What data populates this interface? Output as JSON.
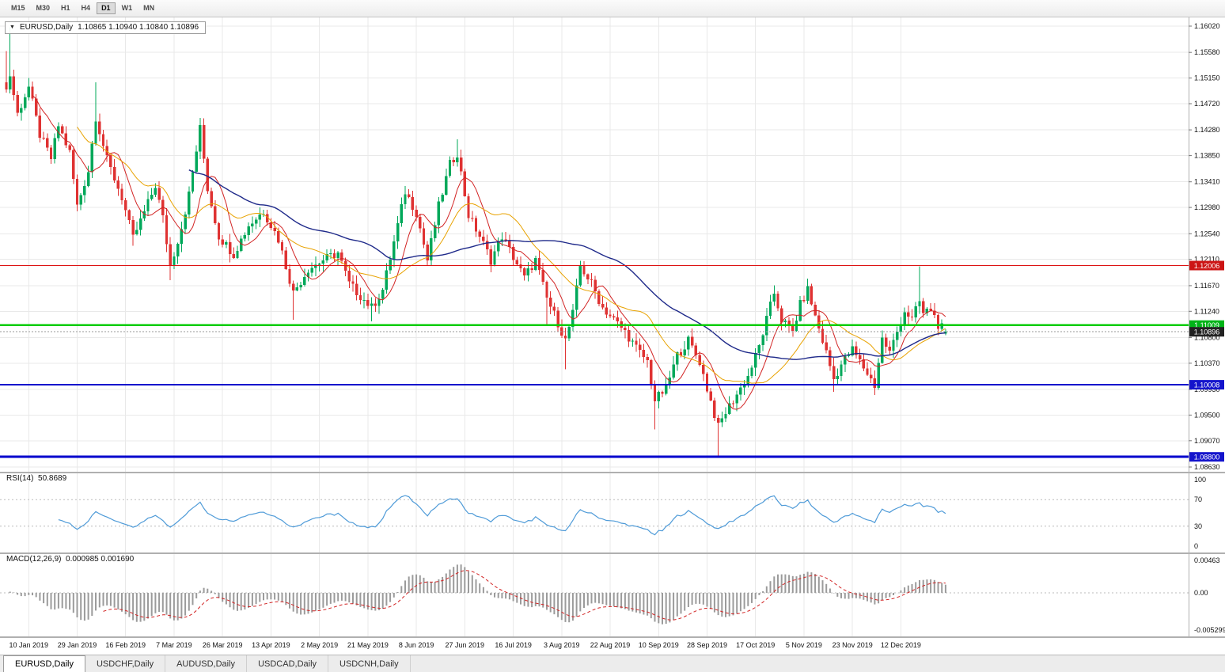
{
  "toolbar": {
    "timeframes": [
      "M15",
      "M30",
      "H1",
      "H4",
      "D1",
      "W1",
      "MN"
    ],
    "active": "D1"
  },
  "chart": {
    "symbol": "EURUSD,Daily",
    "ohlc_text": "1.10865 1.10940 1.10840 1.10896"
  },
  "overlays": {
    "rsi_label": "RSI(14)",
    "rsi_value": "50.8689",
    "macd_label": "MACD(12,26,9)",
    "macd_values": "0.000985 0.001690"
  },
  "price_axis": {
    "labels": [
      "1.16020",
      "1.15580",
      "1.15150",
      "1.14720",
      "1.14280",
      "1.13850",
      "1.13410",
      "1.12980",
      "1.12540",
      "1.12110",
      "1.11670",
      "1.11240",
      "1.10800",
      "1.10370",
      "1.09930",
      "1.09500",
      "1.09070",
      "1.08630"
    ]
  },
  "badges": [
    {
      "text": "1.12006",
      "price": 1.12006,
      "color": "#cc1414"
    },
    {
      "text": "1.11009",
      "price": 1.11009,
      "color": "#00b418"
    },
    {
      "text": "1.10896",
      "price": 1.10896,
      "color": "#222222"
    },
    {
      "text": "1.10008",
      "price": 1.10008,
      "color": "#1414cc"
    },
    {
      "text": "1.08800",
      "price": 1.088,
      "color": "#1414cc"
    }
  ],
  "rsi_axis": {
    "labels": [
      "100",
      "70",
      "30",
      "0"
    ],
    "values": [
      100,
      70,
      30,
      0
    ],
    "dotted": [
      70,
      30
    ]
  },
  "macd_axis": {
    "labels": [
      "0.00463",
      "0.00",
      "-0.005299"
    ],
    "values": [
      0.00463,
      0,
      -0.005299
    ]
  },
  "date_axis": {
    "labels": [
      "10 Jan 2019",
      "29 Jan 2019",
      "16 Feb 2019",
      "7 Mar 2019",
      "26 Mar 2019",
      "13 Apr 2019",
      "2 May 2019",
      "21 May 2019",
      "8 Jun 2019",
      "27 Jun 2019",
      "16 Jul 2019",
      "3 Aug 2019",
      "22 Aug 2019",
      "10 Sep 2019",
      "28 Sep 2019",
      "17 Oct 2019",
      "5 Nov 2019",
      "23 Nov 2019",
      "12 Dec 2019"
    ]
  },
  "tabs": {
    "items": [
      "EURUSD,Daily",
      "USDCHF,Daily",
      "AUDUSD,Daily",
      "USDCAD,Daily",
      "USDCNH,Daily"
    ],
    "active_index": 0
  },
  "chart_data": {
    "type": "candlestick",
    "symbol": "EURUSD",
    "timeframe": "Daily",
    "title": "EURUSD,Daily 1.10865 1.10940 1.10840 1.10896",
    "current_ohlc": {
      "open": 1.10865,
      "high": 1.1094,
      "low": 1.1084,
      "close": 1.10896
    },
    "price_range": [
      1.0863,
      1.1602
    ],
    "candle_count": 253,
    "x_tick_indices": [
      6,
      19,
      32,
      45,
      58,
      71,
      84,
      97,
      110,
      123,
      136,
      149,
      162,
      175,
      188,
      201,
      214,
      227,
      240
    ],
    "x_tick_labels": [
      "10 Jan 2019",
      "29 Jan 2019",
      "16 Feb 2019",
      "7 Mar 2019",
      "26 Mar 2019",
      "13 Apr 2019",
      "2 May 2019",
      "21 May 2019",
      "8 Jun 2019",
      "27 Jun 2019",
      "16 Jul 2019",
      "3 Aug 2019",
      "22 Aug 2019",
      "10 Sep 2019",
      "28 Sep 2019",
      "17 Oct 2019",
      "5 Nov 2019",
      "23 Nov 2019",
      "12 Dec 2019"
    ],
    "anchors": [
      [
        0,
        1.1495
      ],
      [
        1,
        1.152
      ],
      [
        3,
        1.1455
      ],
      [
        6,
        1.15
      ],
      [
        9,
        1.142
      ],
      [
        12,
        1.138
      ],
      [
        14,
        1.1435
      ],
      [
        17,
        1.139
      ],
      [
        19,
        1.13
      ],
      [
        22,
        1.136
      ],
      [
        24,
        1.145
      ],
      [
        27,
        1.1378
      ],
      [
        31,
        1.1315
      ],
      [
        34,
        1.1246
      ],
      [
        37,
        1.129
      ],
      [
        40,
        1.1335
      ],
      [
        42,
        1.128
      ],
      [
        44,
        1.12
      ],
      [
        47,
        1.1265
      ],
      [
        49,
        1.132
      ],
      [
        52,
        1.143
      ],
      [
        54,
        1.133
      ],
      [
        57,
        1.125
      ],
      [
        61,
        1.122
      ],
      [
        65,
        1.1268
      ],
      [
        69,
        1.1292
      ],
      [
        73,
        1.1245
      ],
      [
        77,
        1.1155
      ],
      [
        81,
        1.1195
      ],
      [
        85,
        1.121
      ],
      [
        89,
        1.1222
      ],
      [
        92,
        1.117
      ],
      [
        95,
        1.115
      ],
      [
        98,
        1.113
      ],
      [
        101,
        1.116
      ],
      [
        104,
        1.124
      ],
      [
        107,
        1.1325
      ],
      [
        110,
        1.129
      ],
      [
        113,
        1.121
      ],
      [
        116,
        1.13
      ],
      [
        119,
        1.137
      ],
      [
        121,
        1.139
      ],
      [
        124,
        1.1285
      ],
      [
        127,
        1.125
      ],
      [
        130,
        1.121
      ],
      [
        133,
        1.125
      ],
      [
        136,
        1.1215
      ],
      [
        139,
        1.118
      ],
      [
        142,
        1.121
      ],
      [
        145,
        1.1145
      ],
      [
        148,
        1.1105
      ],
      [
        150,
        1.1075
      ],
      [
        152,
        1.112
      ],
      [
        154,
        1.12
      ],
      [
        157,
        1.117
      ],
      [
        160,
        1.113
      ],
      [
        163,
        1.111
      ],
      [
        166,
        1.109
      ],
      [
        169,
        1.1062
      ],
      [
        172,
        1.104
      ],
      [
        174,
        1.0975
      ],
      [
        177,
        1.0995
      ],
      [
        180,
        1.105
      ],
      [
        183,
        1.1075
      ],
      [
        186,
        1.104
      ],
      [
        188,
        1.0995
      ],
      [
        191,
        1.093
      ],
      [
        193,
        1.0955
      ],
      [
        196,
        1.0985
      ],
      [
        199,
        1.1015
      ],
      [
        202,
        1.1065
      ],
      [
        204,
        1.111
      ],
      [
        206,
        1.1155
      ],
      [
        208,
        1.111
      ],
      [
        211,
        1.109
      ],
      [
        213,
        1.1135
      ],
      [
        215,
        1.116
      ],
      [
        217,
        1.1115
      ],
      [
        220,
        1.1055
      ],
      [
        222,
        1.101
      ],
      [
        224,
        1.1035
      ],
      [
        227,
        1.106
      ],
      [
        230,
        1.103
      ],
      [
        233,
        1.1
      ],
      [
        235,
        1.1078
      ],
      [
        237,
        1.1055
      ],
      [
        239,
        1.109
      ],
      [
        241,
        1.1125
      ],
      [
        243,
        1.111
      ],
      [
        245,
        1.114
      ],
      [
        246,
        1.112
      ],
      [
        248,
        1.1128
      ],
      [
        250,
        1.1102
      ],
      [
        252,
        1.10896
      ]
    ],
    "wick_overrides": [
      [
        0,
        "high",
        1.156
      ],
      [
        1,
        "high",
        1.16
      ],
      [
        6,
        "high",
        1.1515
      ],
      [
        24,
        "high",
        1.1508
      ],
      [
        34,
        "low",
        1.1234
      ],
      [
        44,
        "low",
        1.1176
      ],
      [
        52,
        "high",
        1.1448
      ],
      [
        77,
        "low",
        1.111
      ],
      [
        98,
        "low",
        1.1107
      ],
      [
        121,
        "high",
        1.1412
      ],
      [
        145,
        "low",
        1.1101
      ],
      [
        150,
        "low",
        1.1027
      ],
      [
        174,
        "low",
        1.0926
      ],
      [
        191,
        "low",
        1.0879
      ],
      [
        222,
        "low",
        1.0989
      ],
      [
        233,
        "low",
        1.0984
      ],
      [
        245,
        "high",
        1.1199
      ]
    ],
    "noise_seed": 3,
    "noise_amp": 0.0008,
    "colors": {
      "up": "#00a85a",
      "down": "#df3232"
    },
    "moving_averages": [
      {
        "period": 8,
        "color": "#d22424",
        "width": 1
      },
      {
        "period": 20,
        "color": "#e8a200",
        "width": 1
      },
      {
        "period": 50,
        "color": "#1f2a8a",
        "width": 1.4
      }
    ],
    "hlines": [
      {
        "name": "resistance-line-112006",
        "price": 1.12006,
        "color": "#dd1111",
        "width": 1.2
      },
      {
        "name": "support-line-111009",
        "price": 1.11009,
        "color": "#00cc00",
        "width": 2.5
      },
      {
        "name": "support-line-110008",
        "price": 1.10008,
        "color": "#0000cc",
        "width": 2
      },
      {
        "name": "support-line-108800",
        "price": 1.088,
        "color": "#0000cc",
        "width": 3
      }
    ],
    "bid_line": {
      "price": 1.10896,
      "color": "#999999"
    },
    "indicators": [
      {
        "name": "RSI",
        "period": 14,
        "current": 50.8689,
        "range": [
          0,
          100
        ],
        "levels": [
          70,
          30
        ],
        "color": "#4f9bd8"
      },
      {
        "name": "MACD",
        "fast": 12,
        "slow": 26,
        "signal": 9,
        "current_macd": 0.000985,
        "current_signal": 0.00169,
        "range": [
          -0.005299,
          0.00463
        ],
        "histogram_color": "#9b9b9b",
        "signal_color": "#d22424"
      }
    ]
  }
}
